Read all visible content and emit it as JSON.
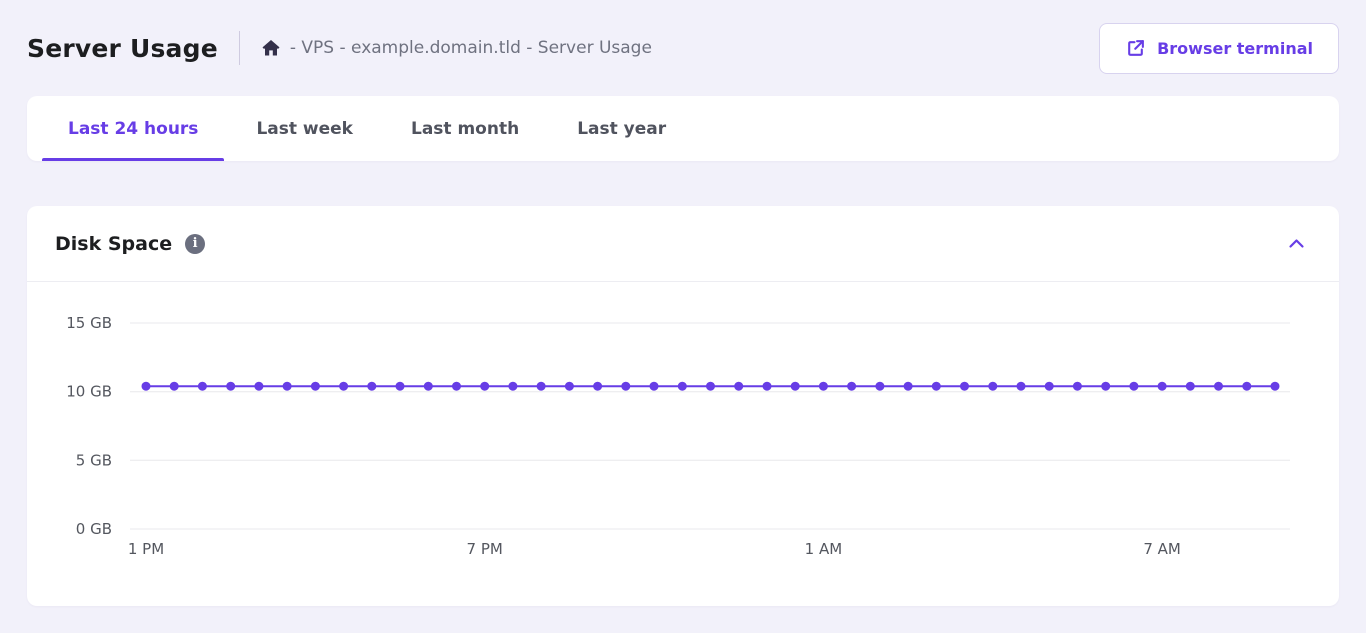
{
  "header": {
    "title": "Server Usage",
    "breadcrumb": "- VPS - example.domain.tld - Server Usage",
    "terminal_button_label": "Browser terminal"
  },
  "tabs": [
    {
      "label": "Last 24 hours"
    },
    {
      "label": "Last week"
    },
    {
      "label": "Last month"
    },
    {
      "label": "Last year"
    }
  ],
  "card": {
    "title": "Disk Space"
  },
  "colors": {
    "accent": "#673de6",
    "grid": "#e8e8ec",
    "tick_text": "#54575f"
  },
  "chart_data": {
    "type": "line",
    "title": "Disk Space",
    "unit": "GB",
    "ylim": [
      0,
      15
    ],
    "grid": true,
    "legend": false,
    "line_color": "#673de6",
    "y_ticks": [
      {
        "value": 15,
        "label": "15 GB"
      },
      {
        "value": 10,
        "label": "10 GB"
      },
      {
        "value": 5,
        "label": "5 GB"
      },
      {
        "value": 0,
        "label": "0 GB"
      }
    ],
    "x_ticks": [
      {
        "index": 0,
        "label": "1 PM"
      },
      {
        "index": 12,
        "label": "7 PM"
      },
      {
        "index": 24,
        "label": "1 AM"
      },
      {
        "index": 36,
        "label": "7 AM"
      }
    ],
    "values": [
      10.4,
      10.4,
      10.4,
      10.4,
      10.4,
      10.4,
      10.4,
      10.4,
      10.4,
      10.4,
      10.4,
      10.4,
      10.4,
      10.4,
      10.4,
      10.4,
      10.4,
      10.4,
      10.4,
      10.4,
      10.4,
      10.4,
      10.4,
      10.4,
      10.4,
      10.4,
      10.4,
      10.4,
      10.4,
      10.4,
      10.4,
      10.4,
      10.4,
      10.4,
      10.4,
      10.4,
      10.4,
      10.4,
      10.4,
      10.4,
      10.4
    ]
  }
}
